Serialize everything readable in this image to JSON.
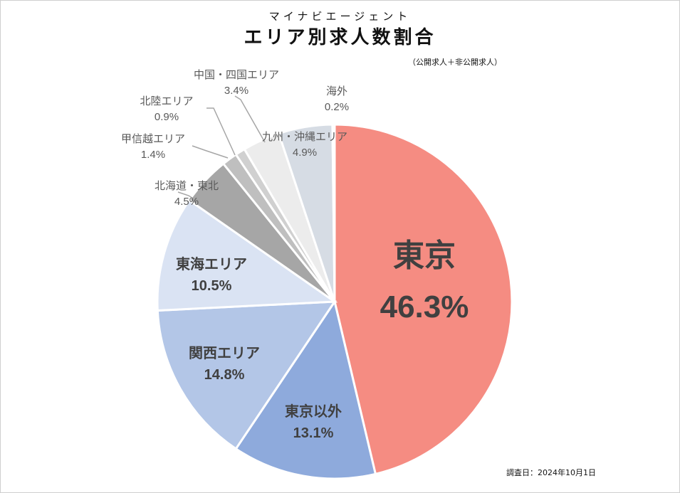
{
  "header": {
    "subtitle": "マイナビエージェント",
    "title": "エリア別求人数割合",
    "note": "（公開求人＋非公開求人）"
  },
  "footer": {
    "survey_date": "調査日：2024年10月1日"
  },
  "chart_data": {
    "type": "pie",
    "title": "エリア別求人数割合",
    "start": "12 o'clock",
    "direction": "clockwise",
    "slices": [
      {
        "label": "東京",
        "value": 46.3,
        "display": "46.3%",
        "color": "#f58c82"
      },
      {
        "label": "東京以外",
        "value": 13.1,
        "display": "13.1%",
        "color": "#8eaadc"
      },
      {
        "label": "関西エリア",
        "value": 14.8,
        "display": "14.8%",
        "color": "#b3c6e7"
      },
      {
        "label": "東海エリア",
        "value": 10.5,
        "display": "10.5%",
        "color": "#dae3f3"
      },
      {
        "label": "北海道・東北",
        "value": 4.5,
        "display": "4.5%",
        "color": "#a6a6a6"
      },
      {
        "label": "甲信越エリア",
        "value": 1.4,
        "display": "1.4%",
        "color": "#bfbfbf"
      },
      {
        "label": "北陸エリア",
        "value": 0.9,
        "display": "0.9%",
        "color": "#d0d0d0"
      },
      {
        "label": "中国・四国エリア",
        "value": 3.4,
        "display": "3.4%",
        "color": "#ececec"
      },
      {
        "label": "九州・沖縄エリア",
        "value": 4.9,
        "display": "4.9%",
        "color": "#d6dce4"
      },
      {
        "label": "海外",
        "value": 0.2,
        "display": "0.2%",
        "color": "#f2f2f2"
      }
    ]
  }
}
